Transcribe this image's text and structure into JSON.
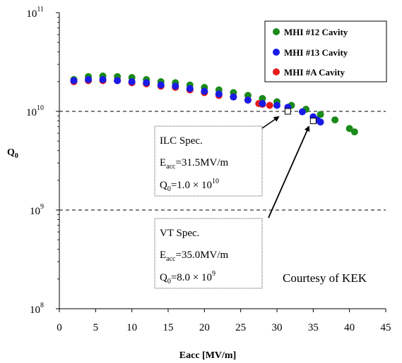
{
  "chart_data": {
    "type": "scatter",
    "title": "",
    "xlabel": "Eacc [MV/m]",
    "ylabel": {
      "main": "Q",
      "sub": "0"
    },
    "xlim": [
      0,
      45
    ],
    "ylim": [
      100000000,
      100000000000
    ],
    "y_scale": "log",
    "x_ticks": [
      "0",
      "5",
      "10",
      "15",
      "20",
      "25",
      "30",
      "35",
      "40",
      "45"
    ],
    "x_tick_values": [
      0,
      5,
      10,
      15,
      20,
      25,
      30,
      35,
      40,
      45
    ],
    "y_ticks": [
      {
        "value": 100000000,
        "base": "10",
        "exp": "8"
      },
      {
        "value": 1000000000,
        "base": "10",
        "exp": "9"
      },
      {
        "value": 10000000000,
        "base": "10",
        "exp": "10"
      },
      {
        "value": 100000000000,
        "base": "10",
        "exp": "11"
      }
    ],
    "grid": "dashed horizontal reference lines at 1e9 and 1e10",
    "legend_position": "top-right",
    "series": [
      {
        "name": "MHI #12 Cavity",
        "color": "#1a8a1a",
        "x": [
          2,
          4,
          6,
          8,
          10,
          12,
          14,
          16,
          18,
          20,
          22,
          24,
          26,
          28,
          30,
          32,
          34,
          36,
          38,
          40,
          40.7
        ],
        "y": [
          21000000000,
          22500000000,
          22800000000,
          22500000000,
          22000000000,
          21000000000,
          20000000000,
          19500000000,
          18500000000,
          17500000000,
          16500000000,
          15500000000,
          14500000000,
          13500000000,
          12500000000,
          11500000000,
          10500000000,
          9300000000,
          8200000000,
          6700000000,
          6200000000
        ]
      },
      {
        "name": "MHI #13 Cavity",
        "color": "#1a1ae6",
        "x": [
          2,
          4,
          6,
          8,
          10,
          12,
          14,
          16,
          18,
          20,
          22,
          24,
          26,
          28,
          30,
          31.5,
          33.5,
          35,
          35.5,
          36
        ],
        "y": [
          20500000000,
          21000000000,
          21000000000,
          20500000000,
          20000000000,
          19500000000,
          18500000000,
          18000000000,
          17000000000,
          16000000000,
          15000000000,
          14000000000,
          13000000000,
          12000000000,
          11500000000,
          11000000000,
          9900000000,
          8800000000,
          8200000000,
          7800000000
        ]
      },
      {
        "name": "MHI #A Cavity",
        "color": "#e61a1a",
        "x": [
          2,
          4,
          6,
          8,
          10,
          12,
          14,
          16,
          18,
          20,
          22,
          24,
          26,
          27.5,
          28,
          29
        ],
        "y": [
          20000000000,
          20500000000,
          20500000000,
          20500000000,
          19500000000,
          19000000000,
          18000000000,
          17500000000,
          16500000000,
          15500000000,
          14500000000,
          14000000000,
          13000000000,
          12000000000,
          11800000000,
          11500000000
        ]
      }
    ],
    "spec_points": [
      {
        "x": 31.5,
        "y": 10000000000
      },
      {
        "x": 35.0,
        "y": 8000000000
      }
    ],
    "annotations": [
      {
        "id": "ilc",
        "line1": "ILC Spec.",
        "eacc": {
          "main": "E",
          "sub": "acc",
          "rest": "=31.5MV/m"
        },
        "q0": {
          "main": "Q",
          "sub": "0",
          "rest": "=1.0 × 10",
          "sup": "10"
        }
      },
      {
        "id": "vt",
        "line1": "VT Spec.",
        "eacc": {
          "main": "E",
          "sub": "acc",
          "rest": "=35.0MV/m"
        },
        "q0": {
          "main": "Q",
          "sub": "0",
          "rest": "=8.0 × 10",
          "sup": "9"
        }
      }
    ],
    "credit": "Courtesy of KEK"
  }
}
